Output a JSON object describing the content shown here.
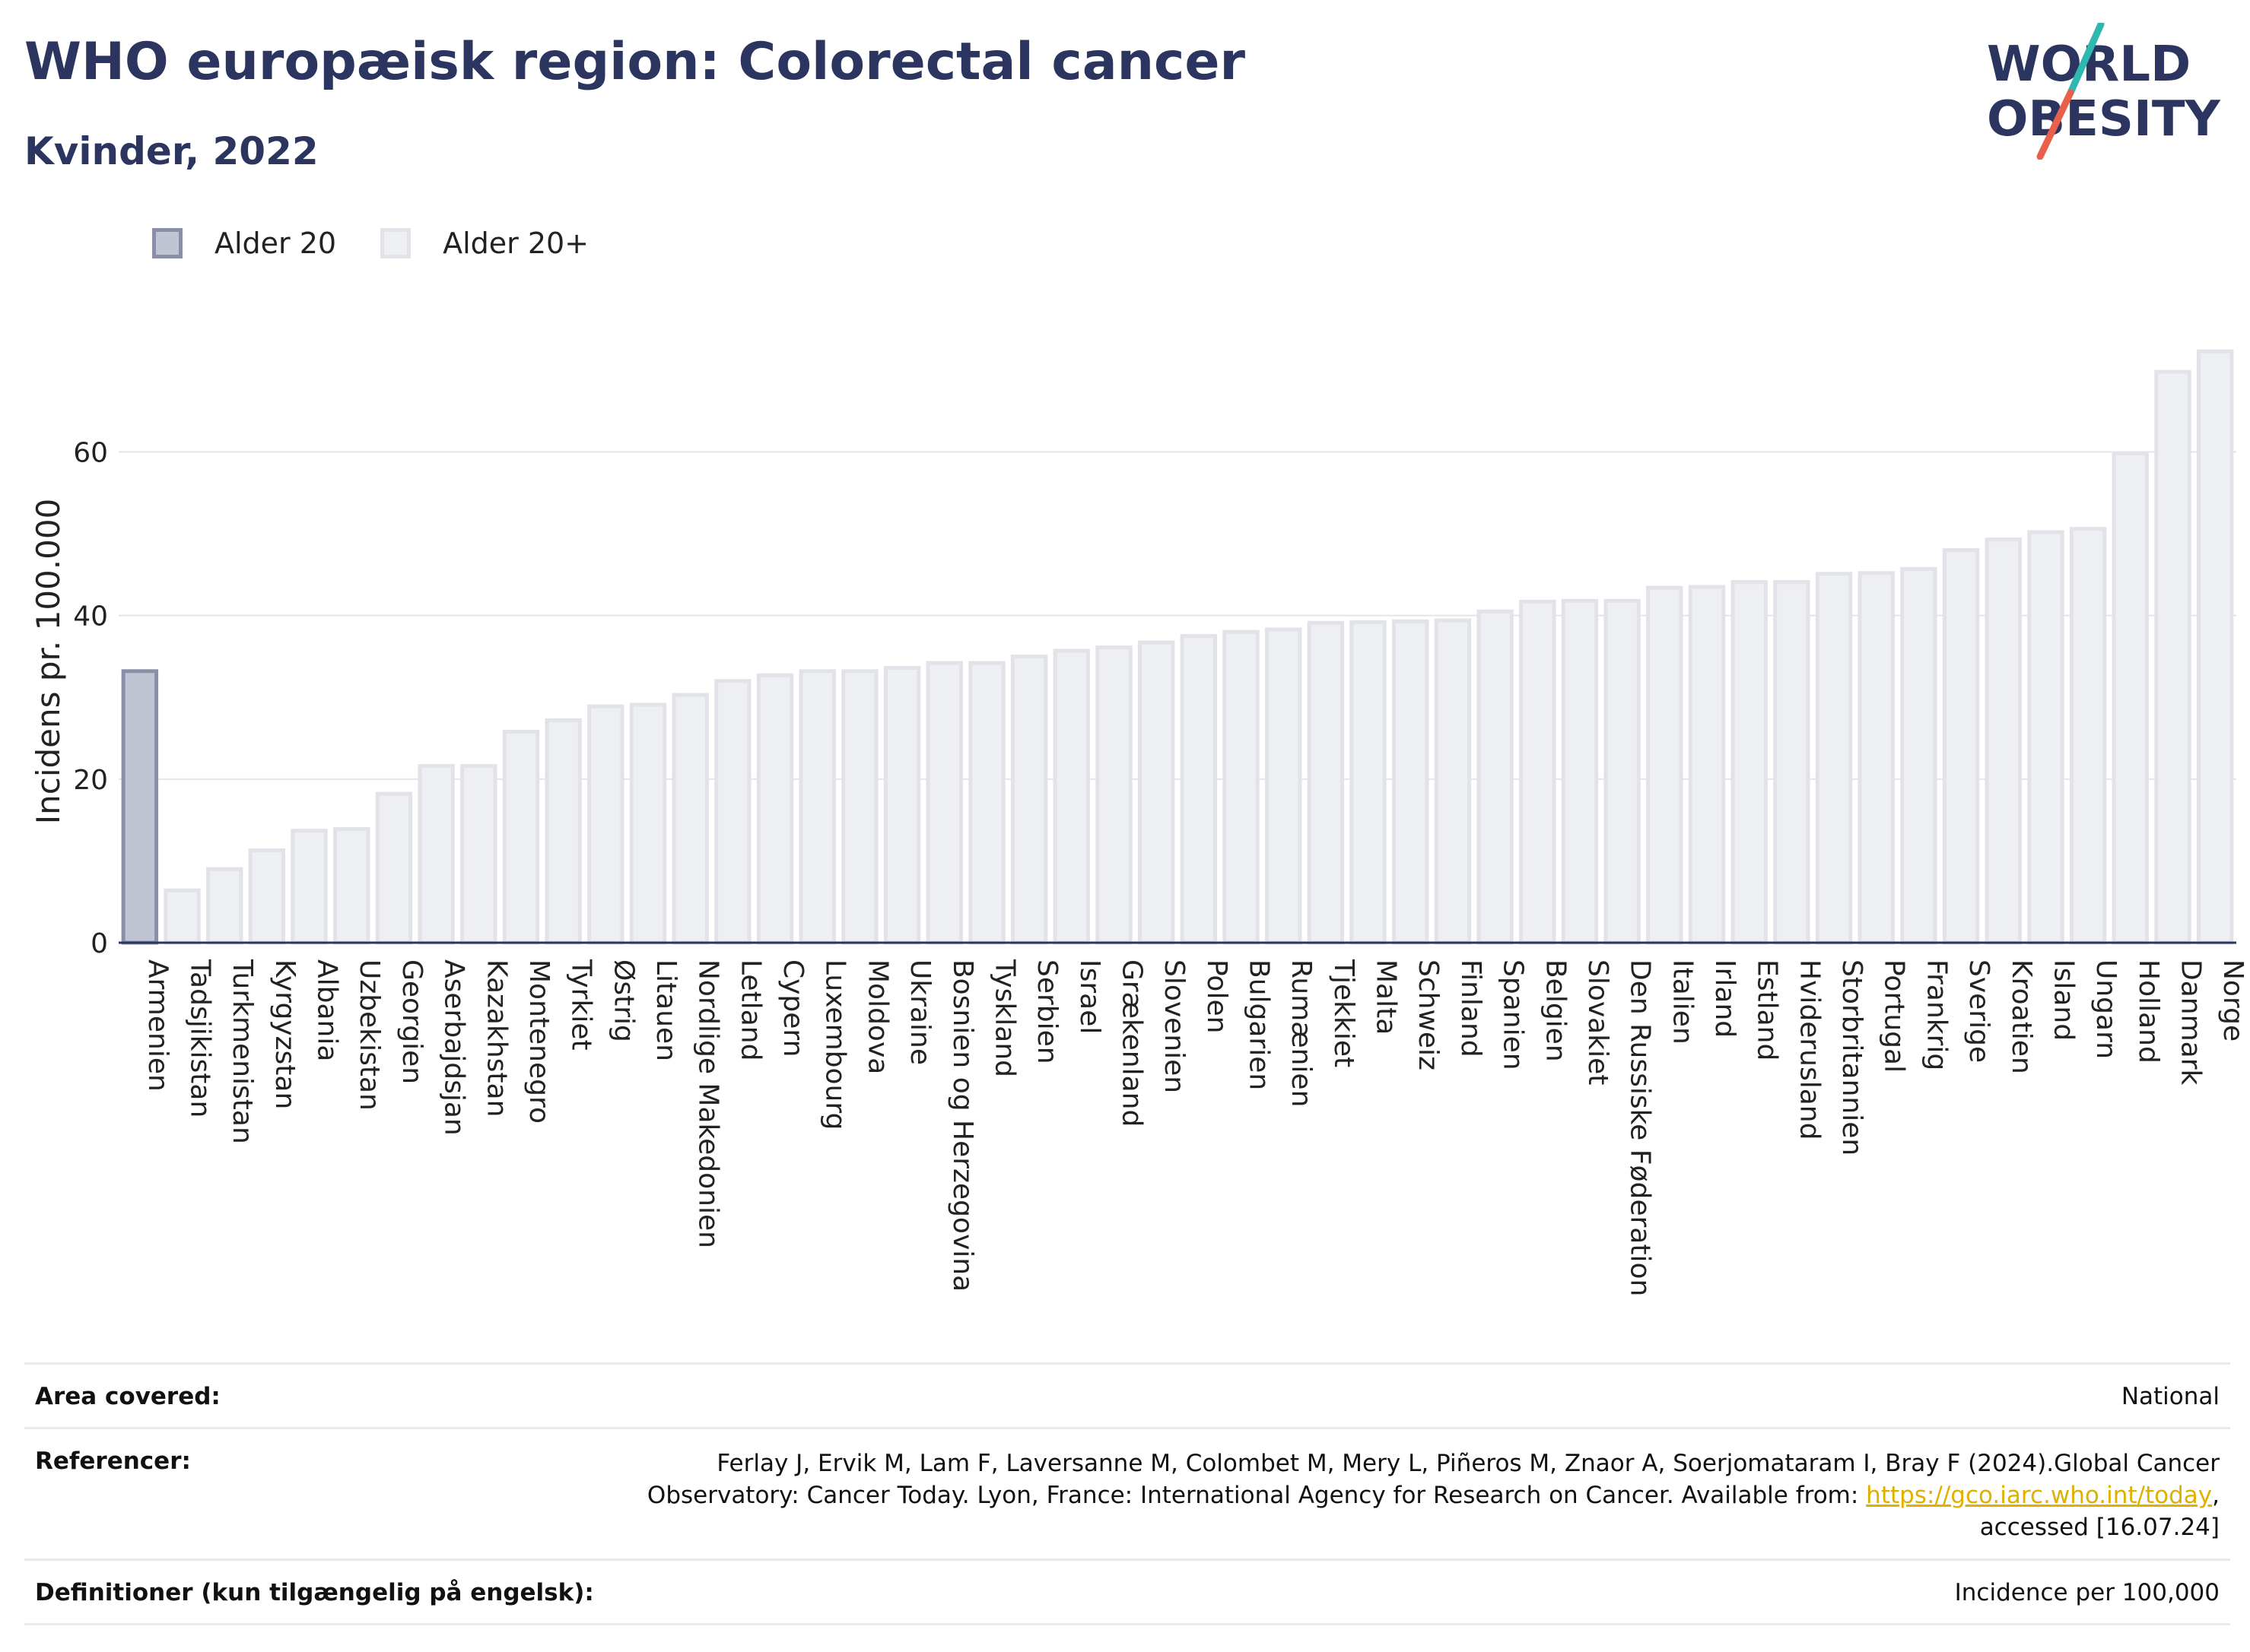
{
  "header": {
    "title": "WHO europæisk region: Colorectal cancer",
    "subtitle": "Kvinder, 2022",
    "logo_line1": "WORLD",
    "logo_line2": "OBESITY"
  },
  "legend": {
    "items": [
      {
        "label": "Alder 20",
        "color": "#c1c4d3"
      },
      {
        "label": "Alder 20+",
        "color": "#eeeff3"
      }
    ]
  },
  "chart_data": {
    "type": "bar",
    "ylabel": "Incidens pr. 100.000",
    "ylim": [
      0,
      72.5
    ],
    "yticks": [
      0,
      20,
      40,
      60
    ],
    "grid": true,
    "legend_position": "top-left",
    "categories": [
      "Armenien",
      "Tadsjikistan",
      "Turkmenistan",
      "Kyrgyzstan",
      "Albania",
      "Uzbekistan",
      "Georgien",
      "Aserbajdsjan",
      "Kazakhstan",
      "Montenegro",
      "Tyrkiet",
      "Østrig",
      "Litauen",
      "Nordlige Makedonien",
      "Letland",
      "Cypern",
      "Luxembourg",
      "Moldova",
      "Ukraine",
      "Bosnien og Herzegovina",
      "Tyskland",
      "Serbien",
      "Israel",
      "Grækenland",
      "Slovenien",
      "Polen",
      "Bulgarien",
      "Rumænien",
      "Tjekkiet",
      "Malta",
      "Schweiz",
      "Finland",
      "Spanien",
      "Belgien",
      "Slovakiet",
      "Den Russiske Føderation",
      "Italien",
      "Irland",
      "Estland",
      "Hviderusland",
      "Storbritannien",
      "Portugal",
      "Frankrig",
      "Sverige",
      "Kroatien",
      "Island",
      "Ungarn",
      "Holland",
      "Danmark",
      "Norge"
    ],
    "series": [
      {
        "name": "Alder 20",
        "color": "#c1c4d3",
        "values": [
          33.2,
          null,
          null,
          null,
          null,
          null,
          null,
          null,
          null,
          null,
          null,
          null,
          null,
          null,
          null,
          null,
          null,
          null,
          null,
          null,
          null,
          null,
          null,
          null,
          null,
          null,
          null,
          null,
          null,
          null,
          null,
          null,
          null,
          null,
          null,
          null,
          null,
          null,
          null,
          null,
          null,
          null,
          null,
          null,
          null,
          null,
          null,
          null,
          null,
          null
        ]
      },
      {
        "name": "Alder 20+",
        "color": "#eeeff3",
        "values": [
          null,
          6.4,
          9.0,
          11.3,
          13.7,
          13.9,
          18.2,
          21.6,
          21.6,
          25.8,
          27.2,
          28.9,
          29.1,
          30.3,
          32.0,
          32.7,
          33.2,
          33.2,
          33.6,
          34.2,
          34.2,
          35.0,
          35.7,
          36.1,
          36.7,
          37.5,
          38.0,
          38.3,
          39.1,
          39.2,
          39.3,
          39.4,
          40.5,
          41.7,
          41.8,
          41.8,
          43.4,
          43.5,
          44.1,
          44.1,
          45.1,
          45.2,
          45.7,
          48.0,
          49.3,
          50.2,
          50.6,
          59.8,
          69.8,
          72.3
        ]
      }
    ]
  },
  "info": {
    "area_key": "Area covered:",
    "area_val": "National",
    "ref_key": "Referencer:",
    "ref_line1": "Ferlay J, Ervik M, Lam F, Laversanne M, Colombet M, Mery L, Piñeros M, Znaor A, Soerjomataram I, Bray F (2024).Global Cancer",
    "ref_line2_pre": "Observatory: Cancer Today. Lyon, France: International Agency for Research on Cancer. Available from: ",
    "ref_link": "https://gco.iarc.who.int/today",
    "ref_line2_post": ",",
    "ref_line3": "accessed [16.07.24]",
    "def_key": "Definitioner (kun tilgængelig på engelsk):",
    "def_val": "Incidence per 100,000"
  }
}
